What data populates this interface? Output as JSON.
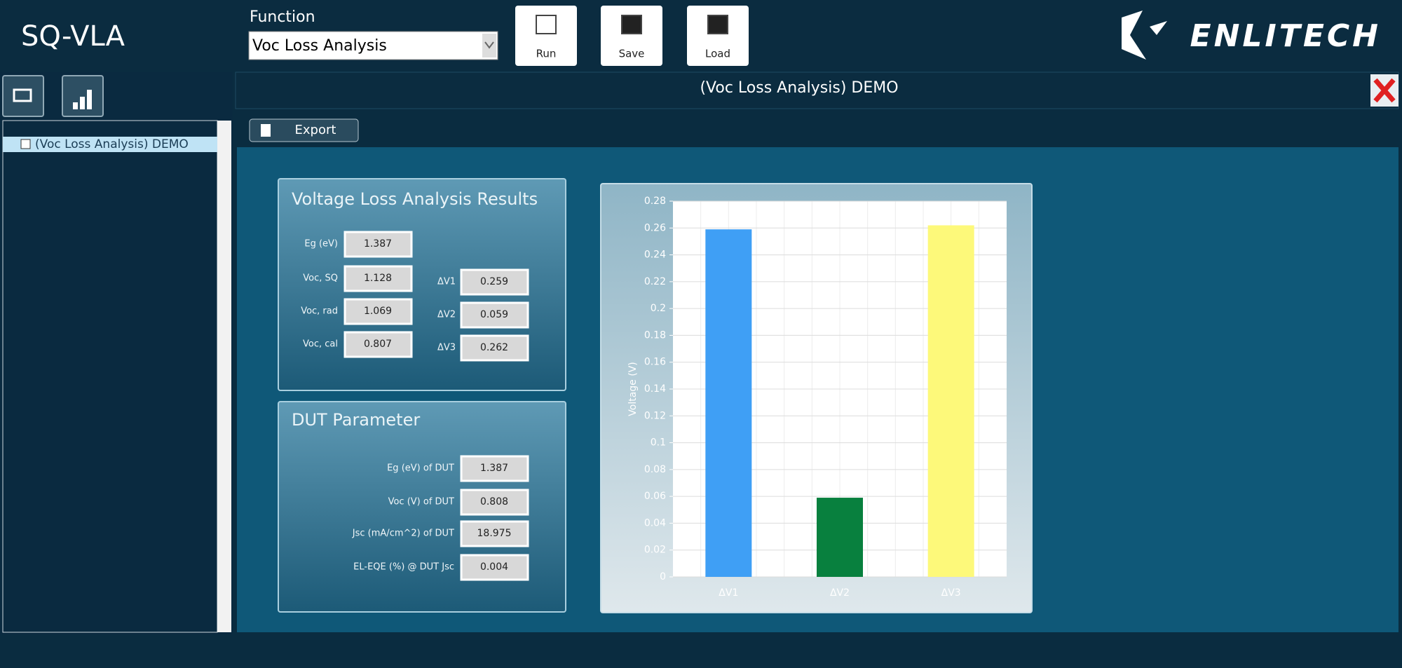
{
  "app": {
    "title": "SQ-VLA",
    "function_label": "Function",
    "function_value": "Voc Loss Analysis",
    "buttons": [
      "Run",
      "Save",
      "Load"
    ],
    "logo": "ENLITECH"
  },
  "tree": {
    "items": [
      "(Voc Loss Analysis) DEMO"
    ]
  },
  "tab": {
    "title": "(Voc Loss Analysis) DEMO",
    "export": "Export"
  },
  "results": {
    "title": "Voltage Loss Analysis Results",
    "left": [
      {
        "label": "Eg (eV)",
        "value": "1.387"
      },
      {
        "label": "Voc, SQ",
        "value": "1.128"
      },
      {
        "label": "Voc, rad",
        "value": "1.069"
      },
      {
        "label": "Voc, cal",
        "value": "0.807"
      }
    ],
    "right": [
      {
        "label": "ΔV1",
        "value": "0.259"
      },
      {
        "label": "ΔV2",
        "value": "0.059"
      },
      {
        "label": "ΔV3",
        "value": "0.262"
      }
    ]
  },
  "dut": {
    "title": "DUT Parameter",
    "fields": [
      {
        "label": "Eg (eV) of DUT",
        "value": "1.387"
      },
      {
        "label": "Voc (V) of DUT",
        "value": "0.808"
      },
      {
        "label": "Jsc (mA/cm^2) of DUT",
        "value": "18.975"
      },
      {
        "label": "EL-EQE (%) @ DUT Jsc",
        "value": "0.004"
      }
    ]
  },
  "chart_data": {
    "type": "bar",
    "y_label": "Voltage (V)",
    "categories": [
      "ΔV1",
      "ΔV2",
      "ΔV3"
    ],
    "values": [
      0.259,
      0.059,
      0.262
    ],
    "colors": [
      "#3f9ff5",
      "#08803e",
      "#fdf97a"
    ],
    "ylim": [
      0,
      0.28
    ],
    "yticks": [
      0,
      0.02,
      0.04,
      0.06,
      0.08,
      0.1,
      0.12,
      0.14,
      0.16,
      0.18,
      0.2,
      0.22,
      0.24,
      0.26,
      0.28
    ],
    "grid": true
  }
}
